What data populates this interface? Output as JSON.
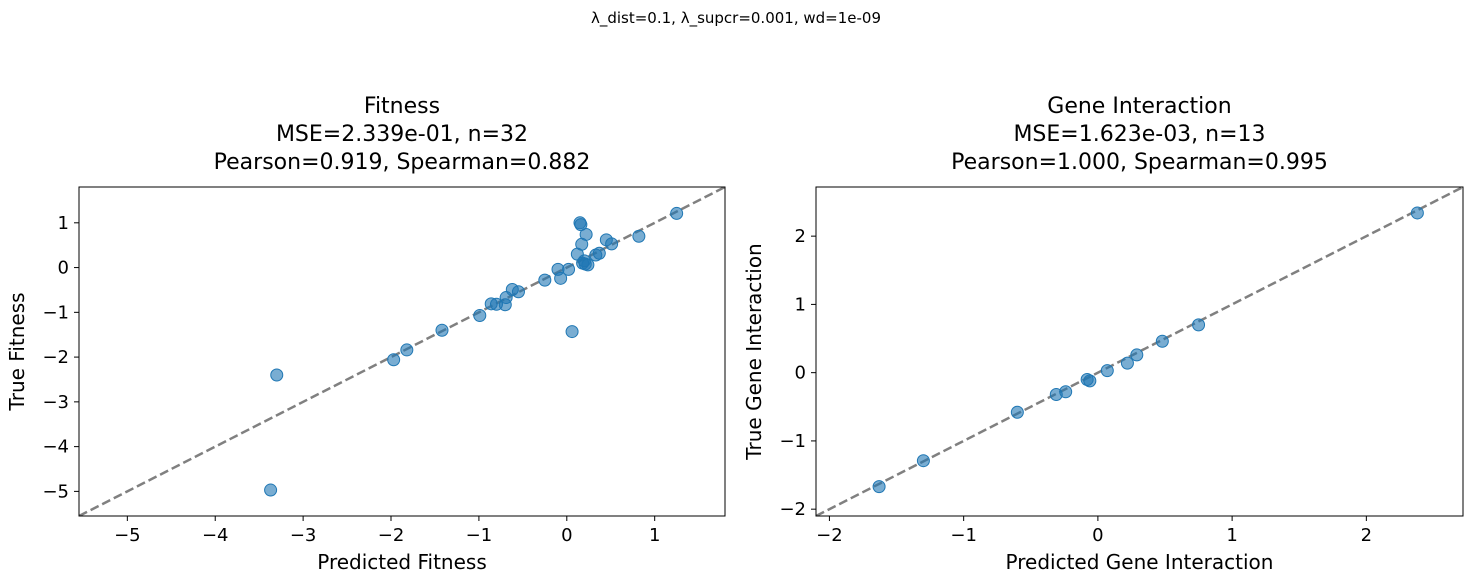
{
  "suptitle": "λ_dist=0.1, λ_supcr=0.001, wd=1e-09",
  "chart_data": [
    {
      "type": "scatter",
      "title": [
        "Fitness",
        "MSE=2.339e-01, n=32",
        "Pearson=0.919, Spearman=0.882"
      ],
      "xlabel": "Predicted Fitness",
      "ylabel": "True Fitness",
      "xlim": [
        -5.55,
        1.8
      ],
      "ylim": [
        -5.55,
        1.8
      ],
      "xticks": [
        -5,
        -4,
        -3,
        -2,
        -1,
        0,
        1
      ],
      "yticks": [
        -5,
        -4,
        -3,
        -2,
        -1,
        0,
        1
      ],
      "xtick_labels": [
        "−5",
        "−4",
        "−3",
        "−2",
        "−1",
        "0",
        "1"
      ],
      "ytick_labels": [
        "−5",
        "−4",
        "−3",
        "−2",
        "−1",
        "0",
        "1"
      ],
      "identity_line": true,
      "grid": false,
      "point_color": "#1f77b4",
      "line_color": "#808080",
      "points": [
        {
          "x": -3.37,
          "y": -4.97
        },
        {
          "x": -3.3,
          "y": -2.4
        },
        {
          "x": -1.97,
          "y": -2.06
        },
        {
          "x": -1.82,
          "y": -1.84
        },
        {
          "x": -1.42,
          "y": -1.4
        },
        {
          "x": -0.99,
          "y": -1.07
        },
        {
          "x": -0.86,
          "y": -0.81
        },
        {
          "x": -0.8,
          "y": -0.82
        },
        {
          "x": -0.7,
          "y": -0.83
        },
        {
          "x": -0.69,
          "y": -0.67
        },
        {
          "x": -0.62,
          "y": -0.49
        },
        {
          "x": -0.55,
          "y": -0.54
        },
        {
          "x": -0.25,
          "y": -0.28
        },
        {
          "x": -0.1,
          "y": -0.04
        },
        {
          "x": -0.07,
          "y": -0.24
        },
        {
          "x": 0.02,
          "y": -0.04
        },
        {
          "x": 0.06,
          "y": -1.43
        },
        {
          "x": 0.12,
          "y": 0.3
        },
        {
          "x": 0.15,
          "y": 1.0
        },
        {
          "x": 0.16,
          "y": 0.96
        },
        {
          "x": 0.17,
          "y": 0.52
        },
        {
          "x": 0.18,
          "y": 0.1
        },
        {
          "x": 0.2,
          "y": 0.15
        },
        {
          "x": 0.21,
          "y": 0.08
        },
        {
          "x": 0.22,
          "y": 0.74
        },
        {
          "x": 0.24,
          "y": 0.06
        },
        {
          "x": 0.33,
          "y": 0.28
        },
        {
          "x": 0.37,
          "y": 0.32
        },
        {
          "x": 0.45,
          "y": 0.62
        },
        {
          "x": 0.51,
          "y": 0.53
        },
        {
          "x": 0.82,
          "y": 0.7
        },
        {
          "x": 1.25,
          "y": 1.21
        }
      ]
    },
    {
      "type": "scatter",
      "title": [
        "Gene Interaction",
        "MSE=1.623e-03, n=13",
        "Pearson=1.000, Spearman=0.995"
      ],
      "xlabel": "Predicted Gene Interaction",
      "ylabel": "True Gene Interaction",
      "xlim": [
        -2.1,
        2.72
      ],
      "ylim": [
        -2.1,
        2.72
      ],
      "xticks": [
        -2,
        -1,
        0,
        1,
        2
      ],
      "yticks": [
        -2,
        -1,
        0,
        1,
        2
      ],
      "xtick_labels": [
        "−2",
        "−1",
        "0",
        "1",
        "2"
      ],
      "ytick_labels": [
        "−2",
        "−1",
        "0",
        "1",
        "2"
      ],
      "identity_line": true,
      "grid": false,
      "point_color": "#1f77b4",
      "line_color": "#808080",
      "points": [
        {
          "x": -1.63,
          "y": -1.67
        },
        {
          "x": -1.3,
          "y": -1.29
        },
        {
          "x": -0.6,
          "y": -0.58
        },
        {
          "x": -0.31,
          "y": -0.32
        },
        {
          "x": -0.24,
          "y": -0.28
        },
        {
          "x": -0.08,
          "y": -0.1
        },
        {
          "x": -0.06,
          "y": -0.12
        },
        {
          "x": 0.07,
          "y": 0.03
        },
        {
          "x": 0.22,
          "y": 0.14
        },
        {
          "x": 0.29,
          "y": 0.26
        },
        {
          "x": 0.48,
          "y": 0.46
        },
        {
          "x": 0.75,
          "y": 0.7
        },
        {
          "x": 2.38,
          "y": 2.34
        }
      ]
    }
  ]
}
